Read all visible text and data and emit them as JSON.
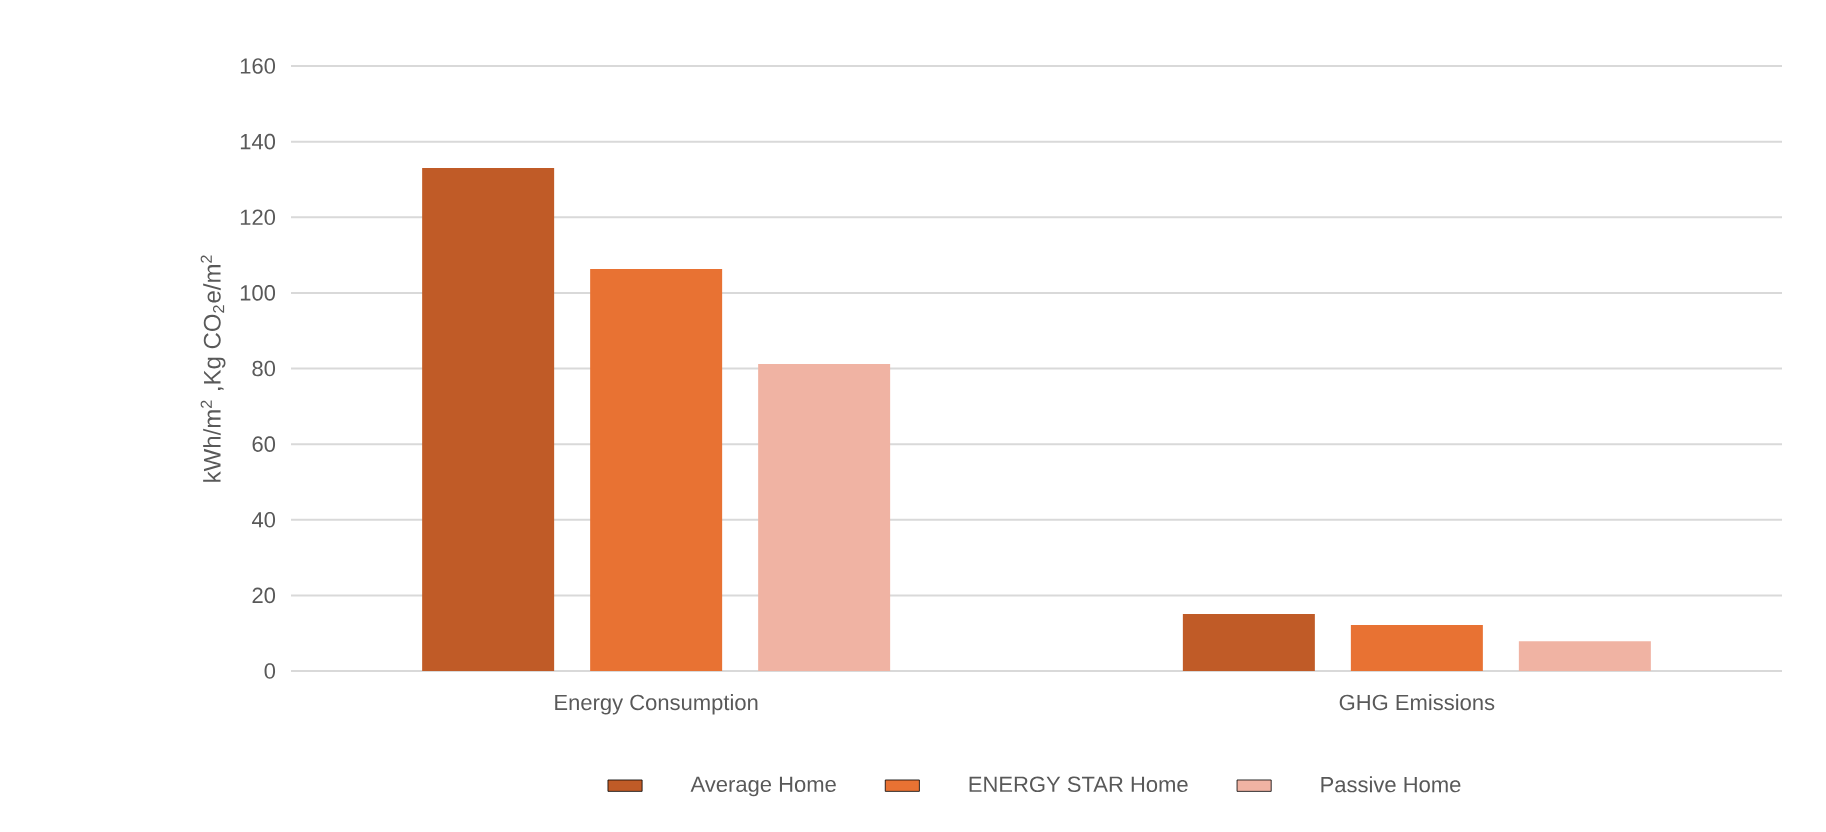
{
  "chart_data": {
    "type": "bar",
    "ylabel": "kWh/m$^{2}$ ,Kg CO$_{2}$e/m$^{2}$",
    "categories": [
      "Energy Consumption",
      "GHG Emissions"
    ],
    "series": [
      {
        "name": "Average Home",
        "color": "#c05b27",
        "values": [
          133,
          15.1
        ]
      },
      {
        "name": "ENERGY STAR Home",
        "color": "#e87233",
        "values": [
          106.3,
          12.2
        ]
      },
      {
        "name": "Passive Home",
        "color": "#f0b3a3",
        "values": [
          81.2,
          7.9
        ]
      }
    ],
    "ylim": [
      0,
      160
    ],
    "yticks": [
      0,
      20,
      40,
      60,
      80,
      100,
      120,
      140,
      160
    ],
    "grid": "y",
    "legend": "bottom"
  }
}
